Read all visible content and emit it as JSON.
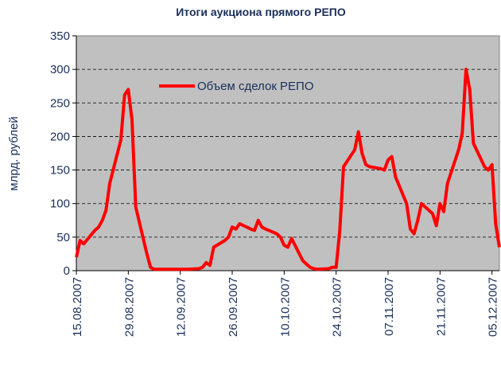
{
  "chart_data": {
    "type": "line",
    "title": "Итоги аукциона прямого  РЕПО",
    "y_label": "млрд. рублей",
    "x": [
      "15.08.2007",
      "16.08.2007",
      "17.08.2007",
      "20.08.2007",
      "21.08.2007",
      "22.08.2007",
      "23.08.2007",
      "24.08.2007",
      "27.08.2007",
      "28.08.2007",
      "29.08.2007",
      "30.08.2007",
      "31.08.2007",
      "03.09.2007",
      "04.09.2007",
      "05.09.2007",
      "06.09.2007",
      "07.09.2007",
      "10.09.2007",
      "11.09.2007",
      "12.09.2007",
      "13.09.2007",
      "14.09.2007",
      "17.09.2007",
      "18.09.2007",
      "19.09.2007",
      "20.09.2007",
      "21.09.2007",
      "24.09.2007",
      "25.09.2007",
      "26.09.2007",
      "27.09.2007",
      "28.09.2007",
      "01.10.2007",
      "02.10.2007",
      "03.10.2007",
      "04.10.2007",
      "05.10.2007",
      "08.10.2007",
      "09.10.2007",
      "10.10.2007",
      "11.10.2007",
      "12.10.2007",
      "15.10.2007",
      "16.10.2007",
      "17.10.2007",
      "18.10.2007",
      "19.10.2007",
      "22.10.2007",
      "23.10.2007",
      "24.10.2007",
      "25.10.2007",
      "26.10.2007",
      "29.10.2007",
      "30.10.2007",
      "31.10.2007",
      "01.11.2007",
      "02.11.2007",
      "05.11.2007",
      "06.11.2007",
      "07.11.2007",
      "08.11.2007",
      "09.11.2007",
      "12.11.2007",
      "13.11.2007",
      "14.11.2007",
      "15.11.2007",
      "16.11.2007",
      "19.11.2007",
      "20.11.2007",
      "21.11.2007",
      "22.11.2007",
      "23.11.2007",
      "26.11.2007",
      "27.11.2007",
      "28.11.2007",
      "29.11.2007",
      "30.11.2007",
      "03.12.2007",
      "04.12.2007",
      "05.12.2007",
      "06.12.2007",
      "07.12.2007"
    ],
    "series": [
      {
        "name": "Объем сделок РЕПО",
        "color": "#ff0000",
        "values": [
          20,
          45,
          40,
          60,
          65,
          75,
          90,
          130,
          195,
          262,
          270,
          225,
          95,
          25,
          5,
          2,
          2,
          2,
          2,
          2,
          2,
          2,
          2,
          3,
          5,
          12,
          8,
          35,
          45,
          50,
          65,
          62,
          70,
          62,
          60,
          75,
          65,
          62,
          55,
          50,
          38,
          35,
          48,
          15,
          10,
          5,
          3,
          2,
          3,
          5,
          5,
          60,
          155,
          180,
          207,
          175,
          158,
          155,
          152,
          150,
          165,
          170,
          140,
          100,
          62,
          55,
          75,
          100,
          85,
          67,
          100,
          88,
          130,
          180,
          205,
          300,
          270,
          190,
          155,
          150,
          158,
          70,
          35
        ]
      }
    ],
    "xlim": [
      "15.08.2007",
      "07.12.2007"
    ],
    "xticks": [
      "15.08.2007",
      "29.08.2007",
      "12.09.2007",
      "26.09.2007",
      "10.10.2007",
      "24.10.2007",
      "07.11.2007",
      "21.11.2007",
      "05.12.2007"
    ],
    "ylim": [
      0,
      350
    ],
    "yticks": [
      0,
      50,
      100,
      150,
      200,
      250,
      300,
      350
    ],
    "grid": true,
    "legend": "top-left"
  }
}
